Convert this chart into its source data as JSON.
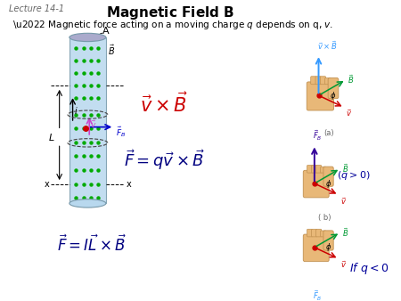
{
  "title": "Magnetic Field $\\mathbf{B}$",
  "lecture_label": "Lecture 14-1",
  "bullet": "\\u2022 Magnetic force acting on a moving charge $q$ depends on q, $v$.",
  "formula1": "$\\vec{v} \\times \\vec{B}$",
  "formula2": "$\\vec{F} = q\\vec{v} \\times \\vec{B}$",
  "formula3": "$\\vec{F} = I\\vec{L} \\times \\vec{B}$",
  "label_qgt0": "$(q>0)$",
  "label_qlt0": "$If\\ q<0$",
  "label_a": "(a)",
  "label_b": "( b)",
  "bg_color": "#ffffff",
  "title_color": "#000000",
  "lecture_color": "#666666",
  "formula1_color": "#cc0000",
  "formula2_color": "#000080",
  "formula3_color": "#000080",
  "qgt0_color": "#000099",
  "qlt0_color": "#000099",
  "arrow_blue": "#3399ff",
  "arrow_darkblue": "#330099",
  "arrow_green": "#009933",
  "arrow_red": "#cc0000",
  "dot_color": "#00aa00",
  "cylinder_color": "#b8d8ee",
  "hand_color": "#e8b878",
  "hand_edge": "#c09050"
}
